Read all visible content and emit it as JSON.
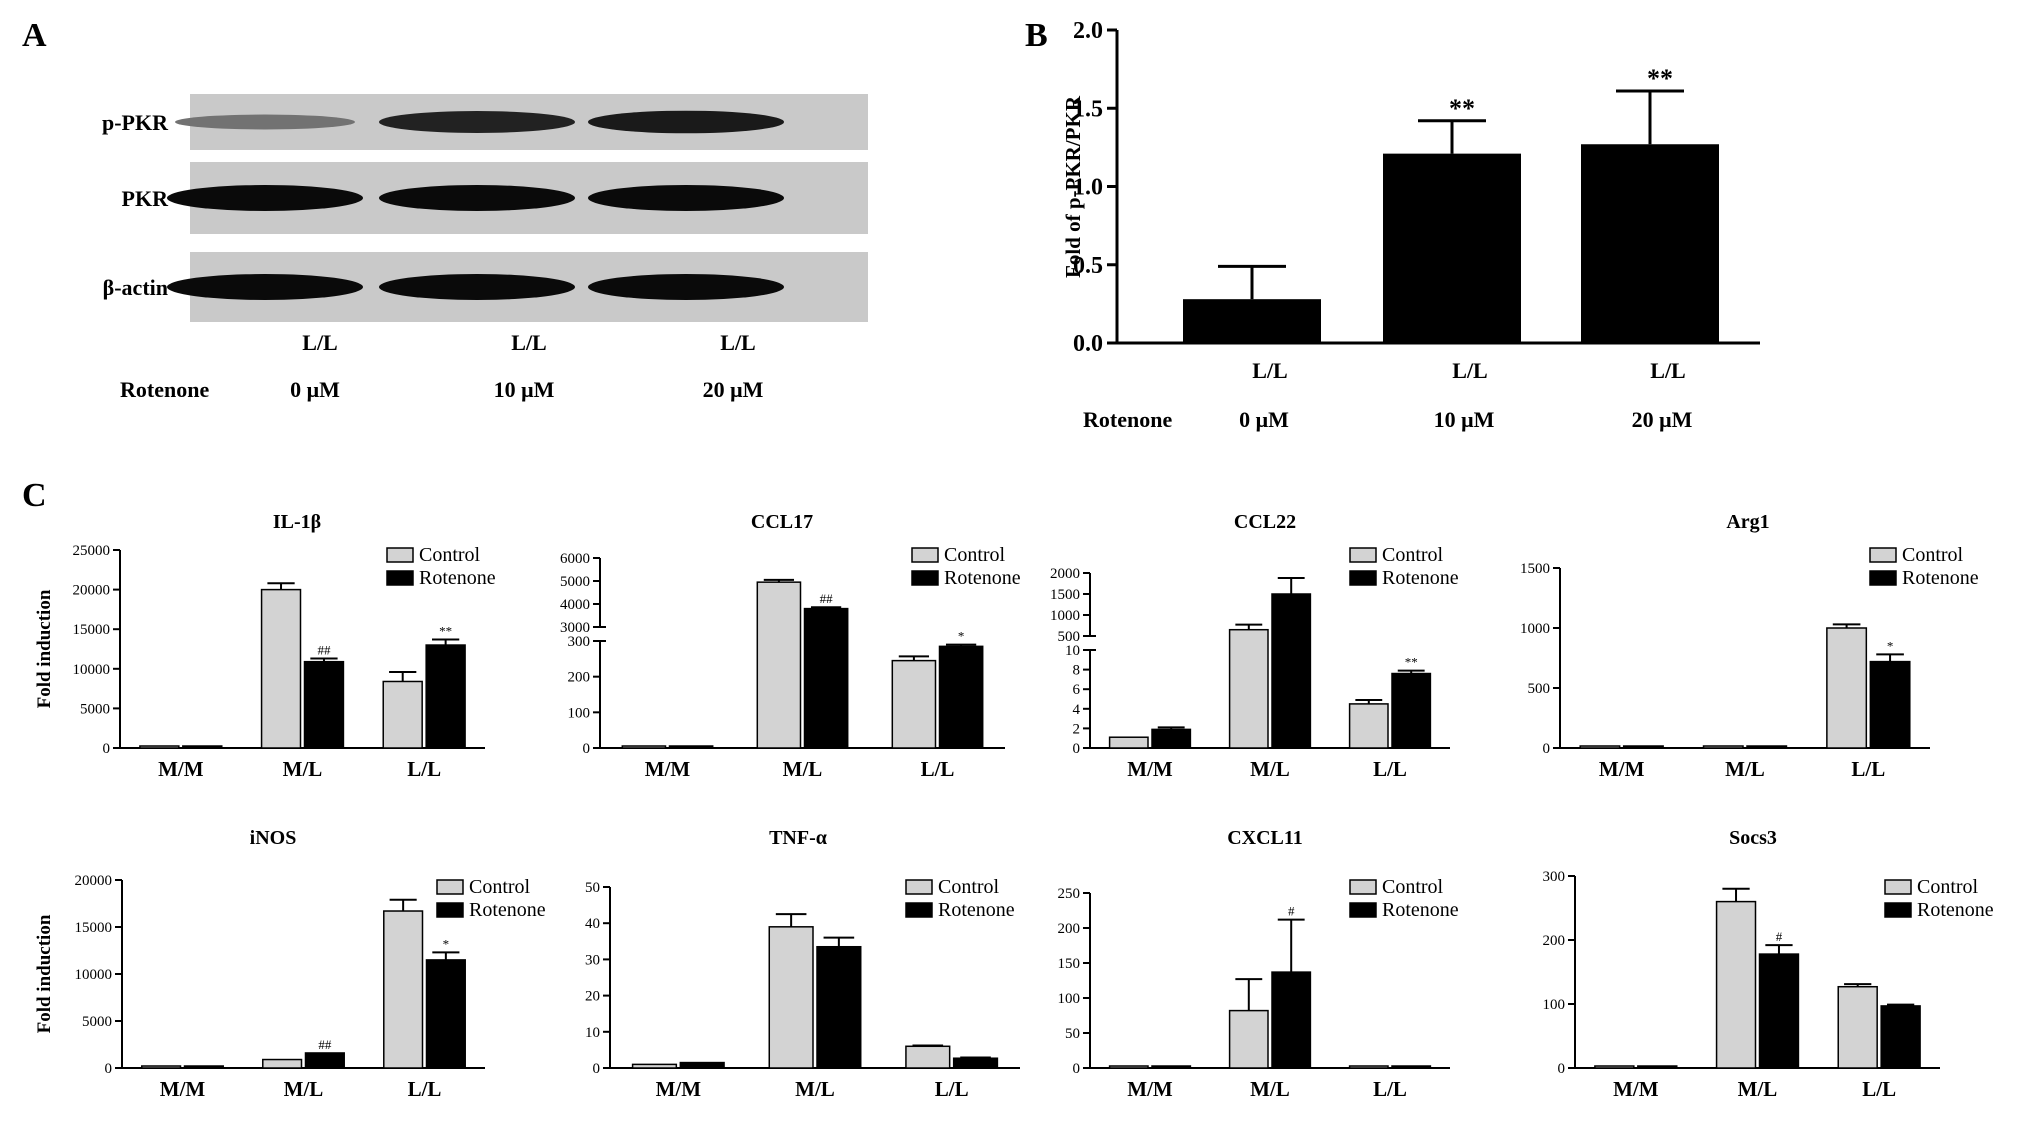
{
  "panels": {
    "a": "A",
    "b": "B",
    "c": "C"
  },
  "blot": {
    "rows": [
      "p-PKR",
      "PKR",
      "β-actin"
    ],
    "lanes": [
      "L/L",
      "L/L",
      "L/L"
    ],
    "treatment_label": "Rotenone",
    "doses": [
      "0 μM",
      "10 μM",
      "20 μM"
    ],
    "band_intensity": {
      "p-PKR": [
        0.35,
        0.85,
        0.9
      ],
      "PKR": [
        1,
        1,
        1
      ],
      "β-actin": [
        1,
        1,
        1
      ]
    }
  },
  "chart_data": [
    {
      "id": "B",
      "type": "bar",
      "ylabel": "Fold of p-PKR/PKR",
      "categories": [
        "L/L",
        "L/L",
        "L/L"
      ],
      "treatment_label": "Rotenone",
      "doses": [
        "0 μM",
        "10 μM",
        "20 μM"
      ],
      "values": [
        0.28,
        1.21,
        1.27
      ],
      "errors": [
        0.21,
        0.21,
        0.34
      ],
      "significance": [
        "",
        "**",
        "**"
      ],
      "ylim": [
        0,
        2.0
      ],
      "yticks": [
        "0.0",
        "0.5",
        "1.0",
        "1.5",
        "2.0"
      ],
      "color": "#000000"
    },
    {
      "id": "IL-1b",
      "type": "bar",
      "title": "IL-1β",
      "ylabel": "Fold induction",
      "categories": [
        "M/M",
        "M/L",
        "L/L"
      ],
      "series": [
        {
          "name": "Control",
          "values": [
            0,
            20000,
            8400
          ],
          "errors": [
            0,
            800,
            1200
          ],
          "sig": [
            "",
            "",
            ""
          ]
        },
        {
          "name": "Rotenone",
          "values": [
            0,
            10900,
            13000
          ],
          "errors": [
            0,
            400,
            700
          ],
          "sig": [
            "",
            "##",
            "**"
          ]
        }
      ],
      "ylim": [
        0,
        25000
      ],
      "yticks": [
        "0",
        "5000",
        "10000",
        "15000",
        "20000",
        "25000"
      ],
      "legend": "top-right"
    },
    {
      "id": "CCL17",
      "type": "bar",
      "title": "CCL17",
      "ylabel": "",
      "categories": [
        "M/M",
        "M/L",
        "L/L"
      ],
      "series": [
        {
          "name": "Control",
          "values": [
            0,
            4950,
            245
          ],
          "errors": [
            0,
            100,
            12
          ],
          "sig": [
            "",
            "",
            ""
          ]
        },
        {
          "name": "Rotenone",
          "values": [
            0,
            3800,
            285
          ],
          "errors": [
            0,
            60,
            5
          ],
          "sig": [
            "",
            "##",
            "*"
          ]
        }
      ],
      "broken_axis": {
        "lower": [
          0,
          300
        ],
        "upper": [
          3000,
          6000
        ]
      },
      "yticks_lower": [
        "0",
        "100",
        "200",
        "300"
      ],
      "yticks_upper": [
        "3000",
        "4000",
        "5000",
        "6000"
      ],
      "legend": "top-right"
    },
    {
      "id": "CCL22",
      "type": "bar",
      "title": "CCL22",
      "ylabel": "",
      "categories": [
        "M/M",
        "M/L",
        "L/L"
      ],
      "series": [
        {
          "name": "Control",
          "values": [
            1.1,
            650,
            4.5
          ],
          "errors": [
            0,
            120,
            0.4
          ],
          "sig": [
            "",
            "",
            ""
          ]
        },
        {
          "name": "Rotenone",
          "values": [
            1.9,
            1500,
            7.6
          ],
          "errors": [
            0.2,
            380,
            0.3
          ],
          "sig": [
            "",
            "",
            "**"
          ]
        }
      ],
      "broken_axis": {
        "lower": [
          0,
          10
        ],
        "upper": [
          500,
          2000
        ]
      },
      "yticks_lower": [
        "0",
        "2",
        "4",
        "6",
        "8",
        "10"
      ],
      "yticks_upper": [
        "500",
        "1000",
        "1500",
        "2000"
      ],
      "legend": "top-right"
    },
    {
      "id": "Arg1",
      "type": "bar",
      "title": "Arg1",
      "ylabel": "",
      "categories": [
        "M/M",
        "M/L",
        "L/L"
      ],
      "series": [
        {
          "name": "Control",
          "values": [
            0,
            0,
            1000
          ],
          "errors": [
            0,
            0,
            30
          ],
          "sig": [
            "",
            "",
            ""
          ]
        },
        {
          "name": "Rotenone",
          "values": [
            0,
            0,
            720
          ],
          "errors": [
            0,
            0,
            60
          ],
          "sig": [
            "",
            "",
            "*"
          ]
        }
      ],
      "ylim": [
        0,
        1500
      ],
      "yticks": [
        "0",
        "500",
        "1000",
        "1500"
      ],
      "legend": "top-right"
    },
    {
      "id": "iNOS",
      "type": "bar",
      "title": "iNOS",
      "ylabel": "Fold induction",
      "categories": [
        "M/M",
        "M/L",
        "L/L"
      ],
      "series": [
        {
          "name": "Control",
          "values": [
            0,
            900,
            16700
          ],
          "errors": [
            0,
            0,
            1200
          ],
          "sig": [
            "",
            "",
            ""
          ]
        },
        {
          "name": "Rotenone",
          "values": [
            0,
            1600,
            11500
          ],
          "errors": [
            0,
            0,
            800
          ],
          "sig": [
            "",
            "##",
            "*"
          ]
        }
      ],
      "ylim": [
        0,
        20000
      ],
      "yticks": [
        "0",
        "5000",
        "10000",
        "15000",
        "20000"
      ],
      "legend": "top-right"
    },
    {
      "id": "TNF-a",
      "type": "bar",
      "title": "TNF-α",
      "ylabel": "",
      "categories": [
        "M/M",
        "M/L",
        "L/L"
      ],
      "series": [
        {
          "name": "Control",
          "values": [
            1,
            39,
            6
          ],
          "errors": [
            0,
            3.5,
            0.2
          ],
          "sig": [
            "",
            "",
            ""
          ]
        },
        {
          "name": "Rotenone",
          "values": [
            1.5,
            33.5,
            2.7
          ],
          "errors": [
            0,
            2.5,
            0.2
          ],
          "sig": [
            "",
            "",
            ""
          ]
        }
      ],
      "ylim": [
        0,
        50
      ],
      "yticks": [
        "0",
        "10",
        "20",
        "30",
        "40",
        "50"
      ],
      "legend": "top-right"
    },
    {
      "id": "CXCL11",
      "type": "bar",
      "title": "CXCL11",
      "ylabel": "",
      "categories": [
        "M/M",
        "M/L",
        "L/L"
      ],
      "series": [
        {
          "name": "Control",
          "values": [
            1,
            82,
            1
          ],
          "errors": [
            0,
            45,
            0
          ],
          "sig": [
            "",
            "",
            ""
          ]
        },
        {
          "name": "Rotenone",
          "values": [
            1,
            137,
            2
          ],
          "errors": [
            0,
            75,
            0
          ],
          "sig": [
            "",
            "#",
            ""
          ]
        }
      ],
      "ylim": [
        0,
        250
      ],
      "yticks": [
        "0",
        "50",
        "100",
        "150",
        "200",
        "250"
      ],
      "legend": "top-right"
    },
    {
      "id": "Socs3",
      "type": "bar",
      "title": "Socs3",
      "ylabel": "",
      "categories": [
        "M/M",
        "M/L",
        "L/L"
      ],
      "series": [
        {
          "name": "Control",
          "values": [
            1,
            260,
            127
          ],
          "errors": [
            0,
            20,
            4
          ],
          "sig": [
            "",
            "",
            ""
          ]
        },
        {
          "name": "Rotenone",
          "values": [
            1,
            178,
            97
          ],
          "errors": [
            0,
            14,
            2
          ],
          "sig": [
            "",
            "#",
            ""
          ]
        }
      ],
      "ylim": [
        0,
        300
      ],
      "yticks": [
        "0",
        "100",
        "200",
        "300"
      ],
      "legend": "top-right"
    }
  ],
  "colors": {
    "control": "#d3d3d3",
    "rotenone": "#000000",
    "axis": "#000000"
  }
}
